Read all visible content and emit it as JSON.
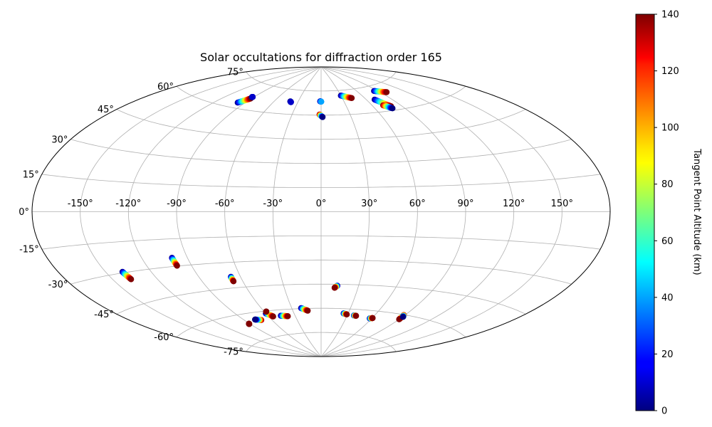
{
  "chart_data": {
    "type": "scatter",
    "projection": "aitoff",
    "title": "Solar occultations for diffraction order 165",
    "xlabel": "",
    "ylabel": "",
    "grid": true,
    "x_ticks": [
      "-150°",
      "-120°",
      "-90°",
      "-60°",
      "-30°",
      "0°",
      "30°",
      "60°",
      "90°",
      "120°",
      "150°"
    ],
    "y_ticks": [
      "-75°",
      "-60°",
      "-45°",
      "-30°",
      "-15°",
      "0°",
      "15°",
      "30°",
      "45°",
      "60°",
      "75°"
    ],
    "colorbar": {
      "label": "Tangent Point Altitude (km)",
      "range": [
        0,
        140
      ],
      "ticks": [
        "0",
        "20",
        "40",
        "60",
        "80",
        "100",
        "120",
        "140"
      ],
      "colormap": "jet"
    },
    "series": [
      {
        "lon": [
          -97.6,
          -91.0
        ],
        "lat": [
          63.0,
          66.4
        ],
        "alt": [
          0,
          140
        ]
      },
      {
        "lon": [
          -92.0,
          -91.6
        ],
        "lat": [
          67.2,
          67.4
        ],
        "alt": [
          0,
          10
        ]
      },
      {
        "lon": [
          -40.0,
          -38.7
        ],
        "lat": [
          67.8,
          67.4
        ],
        "alt": [
          0,
          10
        ]
      },
      {
        "lon": [
          -1.2,
          0.2
        ],
        "lat": [
          68.6,
          68.4
        ],
        "alt": [
          0,
          40
        ]
      },
      {
        "lon": [
          -1.6,
          1.5
        ],
        "lat": [
          60.4,
          58.8
        ],
        "alt": [
          140,
          0
        ]
      },
      {
        "lon": [
          30.0,
          43.0
        ],
        "lat": [
          71.8,
          69.8
        ],
        "alt": [
          0,
          140
        ]
      },
      {
        "lon": [
          70.0,
          79.0
        ],
        "lat": [
          67.4,
          62.4
        ],
        "alt": [
          0,
          140
        ]
      },
      {
        "lon": [
          72.0,
          78.0
        ],
        "lat": [
          63.6,
          61.2
        ],
        "alt": [
          140,
          0
        ]
      },
      {
        "lon": [
          85.0,
          98.0
        ],
        "lat": [
          72.0,
          70.0
        ],
        "alt": [
          0,
          140
        ]
      },
      {
        "lon": [
          -139.0,
          -137.8
        ],
        "lat": [
          -29.5,
          -33.5
        ],
        "alt": [
          0,
          140
        ]
      },
      {
        "lon": [
          -100.2,
          -99.8
        ],
        "lat": [
          -25.3,
          -29.8
        ],
        "alt": [
          0,
          140
        ]
      },
      {
        "lon": [
          -67.0,
          -67.0
        ],
        "lat": [
          -38.5,
          -41.2
        ],
        "alt": [
          0,
          140
        ]
      },
      {
        "lon": [
          13.0,
          11.0
        ],
        "lat": [
          -45.9,
          -47.2
        ],
        "alt": [
          0,
          140
        ]
      },
      {
        "lon": [
          -72.0,
          -78.0
        ],
        "lat": [
          -64.8,
          -64.0
        ],
        "alt": [
          140,
          0
        ]
      },
      {
        "lon": [
          -60.0,
          -55.0
        ],
        "lat": [
          -61.4,
          -63.6
        ],
        "alt": [
          0,
          140
        ]
      },
      {
        "lon": [
          -46.0,
          -38.5
        ],
        "lat": [
          -63.6,
          -64.2
        ],
        "alt": [
          0,
          140
        ]
      },
      {
        "lon": [
          -20.5,
          -14.3
        ],
        "lat": [
          -59.7,
          -61.4
        ],
        "alt": [
          0,
          140
        ]
      },
      {
        "lon": [
          25.0,
          29.0
        ],
        "lat": [
          -62.9,
          -63.4
        ],
        "alt": [
          0,
          140
        ]
      },
      {
        "lon": [
          37.6,
          40.2
        ],
        "lat": [
          -63.8,
          -63.9
        ],
        "alt": [
          0,
          140
        ]
      },
      {
        "lon": [
          57.8,
          60.6
        ],
        "lat": [
          -64.7,
          -64.3
        ],
        "alt": [
          0,
          140
        ]
      },
      {
        "lon": [
          89.0,
          90.0
        ],
        "lat": [
          -60.5,
          -62.8
        ],
        "alt": [
          0,
          140
        ]
      },
      {
        "lon": [
          88.8,
          90.4
        ],
        "lat": [
          -60.2,
          -61.2
        ],
        "alt": [
          140,
          0
        ]
      },
      {
        "lon": [
          -91.0,
          -90.8
        ],
        "lat": [
          -65.8,
          -65.6
        ],
        "alt": [
          140,
          140
        ]
      },
      {
        "lon": [
          -58.0,
          -58.0
        ],
        "lat": [
          -60.4,
          -60.4
        ],
        "alt": [
          140,
          140
        ]
      }
    ]
  }
}
